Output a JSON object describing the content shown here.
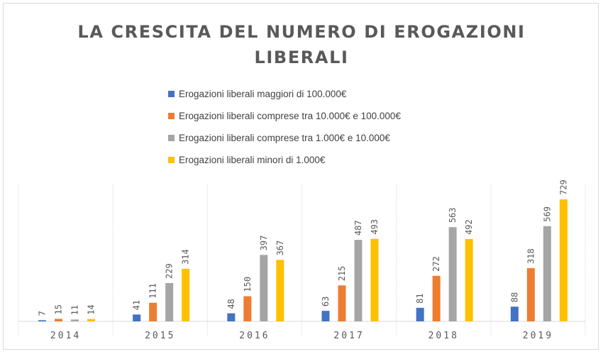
{
  "chart_data": {
    "type": "bar",
    "title": "LA CRESCITA DEL NUMERO DI EROGAZIONI LIBERALI",
    "title_lines": [
      "LA CRESCITA DEL NUMERO DI EROGAZIONI",
      "LIBERALI"
    ],
    "categories": [
      "2014",
      "2015",
      "2016",
      "2017",
      "2018",
      "2019"
    ],
    "series": [
      {
        "name": "Erogazioni liberali maggiori di 100.000€",
        "color": "#4472c4",
        "values": [
          7,
          41,
          48,
          63,
          81,
          88
        ]
      },
      {
        "name": "Erogazioni liberali comprese tra 10.000€ e 100.000€",
        "color": "#ed7d31",
        "values": [
          15,
          111,
          150,
          215,
          272,
          318
        ]
      },
      {
        "name": "Erogazioni liberali comprese tra 1.000€ e 10.000€",
        "color": "#a5a5a5",
        "values": [
          11,
          229,
          397,
          487,
          563,
          569
        ]
      },
      {
        "name": "Erogazioni liberali minori di 1.000€",
        "color": "#ffc000",
        "values": [
          14,
          314,
          367,
          493,
          492,
          729
        ]
      }
    ],
    "ylim": [
      0,
      800
    ],
    "legend_position": "top-center",
    "data_labels": true,
    "grid": false
  }
}
